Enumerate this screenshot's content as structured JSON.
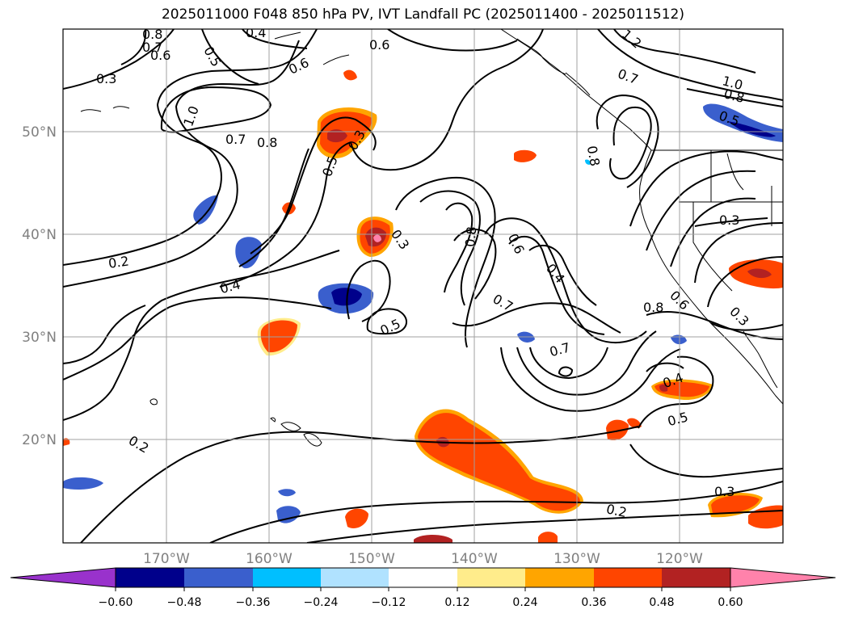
{
  "title": "2025011000 F048 850 hPa PV, IVT Landfall PC (2025011400 - 2025011512)",
  "map": {
    "lat_labels": [
      "50°N",
      "40°N",
      "30°N",
      "20°N"
    ],
    "lon_labels": [
      "170°W",
      "160°W",
      "150°W",
      "140°W",
      "130°W",
      "120°W"
    ],
    "contour_labels": [
      "0.8",
      "0.4",
      "0.7",
      "0.5",
      "0.6",
      "0.6",
      "0.3",
      "1.0",
      "0.7",
      "0.8",
      "0.3",
      "0.5",
      "0.6",
      "0.2",
      "0.4",
      "0.3",
      "0.5",
      "0.8",
      "0.6",
      "0.4",
      "0.7",
      "0.7",
      "0.2",
      "0.4",
      "0.5",
      "1.2",
      "0.7",
      "1.0",
      "0.8",
      "0.5",
      "0.8",
      "0.3",
      "0.6",
      "0.8",
      "0.3",
      "0.3",
      "0.2"
    ],
    "grid": true,
    "colors": {
      "contour": "#000000",
      "gridline": "#a0a0a0",
      "coast": "#000000"
    }
  },
  "colorbar": {
    "ticks": [
      "−0.60",
      "−0.48",
      "−0.36",
      "−0.24",
      "−0.12",
      "0.12",
      "0.24",
      "0.36",
      "0.48",
      "0.60"
    ],
    "colors": [
      "#9932cc",
      "#00008b",
      "#3a5fcd",
      "#00bfff",
      "#b0e2ff",
      "#ffffff",
      "#ffec8b",
      "#ffa500",
      "#ff4500",
      "#b22222",
      "#ff82ab"
    ]
  }
}
